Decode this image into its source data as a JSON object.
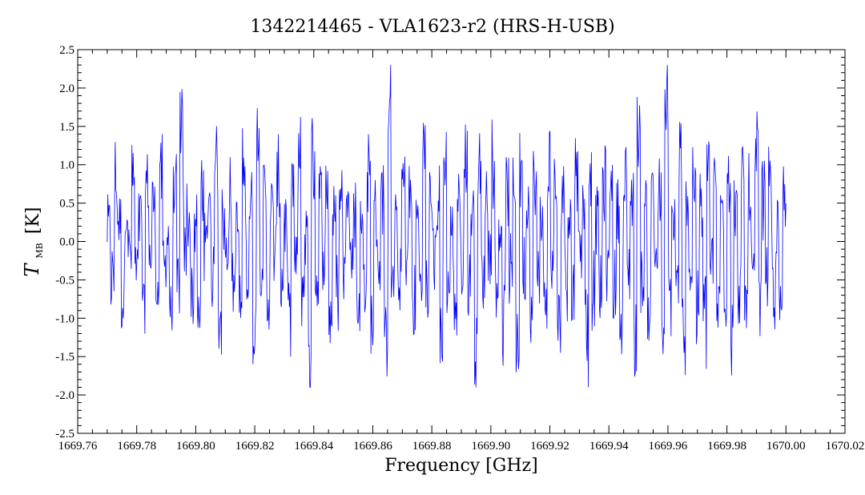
{
  "chart_data": {
    "type": "line",
    "title": "1342214465 - VLA1623-r2 (HRS-H-USB)",
    "xlabel": "Frequency [GHz]",
    "ylabel_main": "T",
    "ylabel_sub": "MB",
    "ylabel_unit": "[K]",
    "xlim": [
      1669.76,
      1670.02
    ],
    "ylim": [
      -2.5,
      2.5
    ],
    "x_ticks": [
      "1669.76",
      "1669.78",
      "1669.80",
      "1669.82",
      "1669.84",
      "1669.86",
      "1669.88",
      "1669.90",
      "1669.92",
      "1669.94",
      "1669.96",
      "1669.98",
      "1670.00",
      "1670.02"
    ],
    "y_ticks": [
      "-2.5",
      "-2.0",
      "-1.5",
      "-1.0",
      "-0.5",
      "0.0",
      "0.5",
      "1.0",
      "1.5",
      "2.0",
      "2.5"
    ],
    "series_color": "#0000ff",
    "grid": false,
    "series": [
      {
        "x_start": 1669.77,
        "x_end": 1670.0,
        "values": [
          0.2,
          -0.6,
          1.0,
          0.3,
          -0.9,
          0.7,
          -0.2,
          1.1,
          -0.5,
          0.4,
          -1.1,
          0.9,
          -0.3,
          0.6,
          -0.8,
          1.2,
          -0.4,
          0.1,
          -1.0,
          0.8,
          -0.7,
          1.8,
          -0.2,
          0.5,
          -0.9,
          0.3,
          -1.3,
          1.0,
          -0.1,
          0.7,
          -0.6,
          1.6,
          -1.2,
          0.4,
          -0.3,
          0.9,
          -0.8,
          0.2,
          -1.0,
          1.1,
          -0.5,
          0.6,
          -1.4,
          2.1,
          -0.3,
          0.8,
          -0.9,
          0.5,
          -0.2,
          1.0,
          -0.7,
          0.3,
          -1.1,
          0.9,
          -0.4,
          1.3,
          -0.8,
          0.1,
          -1.8,
          1.5,
          -0.6,
          0.7,
          -0.2,
          1.0,
          -1.3,
          0.4,
          -0.9,
          0.8,
          -0.5,
          1.2,
          -0.3,
          0.6,
          -1.0,
          0.2,
          -0.7,
          1.1,
          -1.2,
          0.5,
          -0.4,
          0.9,
          -1.5,
          2.2,
          -0.6,
          0.3,
          -0.8,
          1.0,
          -0.2,
          0.7,
          -1.1,
          0.4,
          -0.5,
          1.5,
          -0.9,
          0.8,
          -0.3,
          0.6,
          -1.6,
          1.2,
          -0.7,
          0.2,
          -1.0,
          0.9,
          -0.4,
          1.3,
          -0.8,
          0.5,
          -1.7,
          1.1,
          -0.6,
          0.7,
          -0.2,
          1.4,
          -0.9,
          0.3,
          -1.3,
          0.8,
          -0.5,
          1.0,
          -1.8,
          1.2,
          -0.4,
          0.6,
          -1.0,
          0.9,
          -0.7,
          0.4,
          -1.2,
          1.3,
          -0.3,
          0.8,
          -1.5,
          1.0,
          -0.6,
          0.5,
          -0.9,
          1.4,
          -0.2,
          0.7,
          -1.6,
          1.1,
          -0.8,
          0.3,
          -1.0,
          0.9,
          -0.5,
          1.2,
          -0.7,
          0.6,
          -1.3,
          1.0,
          -0.4,
          0.8,
          -1.8,
          1.9,
          -0.6,
          0.5,
          -1.2,
          1.0,
          -0.3,
          0.7,
          -1.5,
          2.1,
          -0.9,
          0.4,
          -0.6,
          1.3,
          -1.7,
          0.8,
          -0.5,
          1.1,
          -1.1,
          0.6,
          -1.3,
          1.6,
          -0.4,
          0.9,
          -1.0,
          0.7,
          -0.8,
          1.2,
          -1.5,
          0.5,
          -0.7,
          1.0,
          -1.2,
          0.9,
          -0.6,
          1.4,
          -1.0,
          0.8,
          -0.5,
          1.1,
          -0.9,
          0.3,
          -1.3,
          0.7
        ],
        "step_mode": "noise",
        "point_count": 1100
      }
    ]
  }
}
